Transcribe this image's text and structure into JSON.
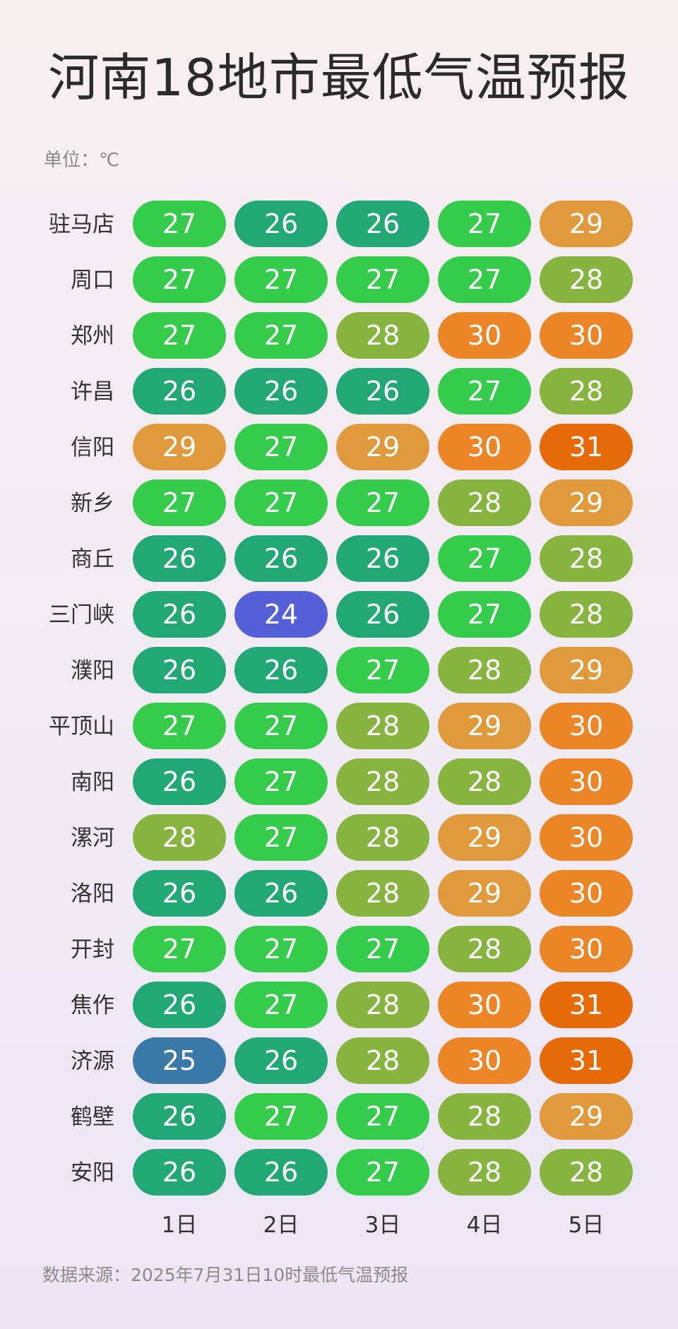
{
  "title": "河南18地市最低气温预报",
  "unit_label": "单位：℃",
  "source_label": "数据来源：2025年7月31日10时最低气温预报",
  "chart_data": {
    "type": "heatmap",
    "title": "河南18地市最低气温预报",
    "unit": "℃",
    "columns": [
      "1日",
      "2日",
      "3日",
      "4日",
      "5日"
    ],
    "rows": [
      "驻马店",
      "周口",
      "郑州",
      "许昌",
      "信阳",
      "新乡",
      "商丘",
      "三门峡",
      "濮阳",
      "平顶山",
      "南阳",
      "漯河",
      "洛阳",
      "开封",
      "焦作",
      "济源",
      "鹤壁",
      "安阳"
    ],
    "values": [
      [
        27,
        26,
        26,
        27,
        29
      ],
      [
        27,
        27,
        27,
        27,
        28
      ],
      [
        27,
        27,
        28,
        30,
        30
      ],
      [
        26,
        26,
        26,
        27,
        28
      ],
      [
        29,
        27,
        29,
        30,
        31
      ],
      [
        27,
        27,
        27,
        28,
        29
      ],
      [
        26,
        26,
        26,
        27,
        28
      ],
      [
        26,
        24,
        26,
        27,
        28
      ],
      [
        26,
        26,
        27,
        28,
        29
      ],
      [
        27,
        27,
        28,
        29,
        30
      ],
      [
        26,
        27,
        28,
        28,
        30
      ],
      [
        28,
        27,
        28,
        29,
        30
      ],
      [
        26,
        26,
        28,
        29,
        30
      ],
      [
        27,
        27,
        27,
        28,
        30
      ],
      [
        26,
        27,
        28,
        30,
        31
      ],
      [
        25,
        26,
        28,
        30,
        31
      ],
      [
        26,
        27,
        27,
        28,
        29
      ],
      [
        26,
        26,
        27,
        28,
        28
      ]
    ],
    "color_scale": {
      "24": "#5560d8",
      "25": "#3a78a8",
      "26": "#22a874",
      "27": "#35cc4c",
      "28": "#86b43f",
      "29": "#e09a3c",
      "30": "#ec8526",
      "31": "#e66b08"
    }
  }
}
